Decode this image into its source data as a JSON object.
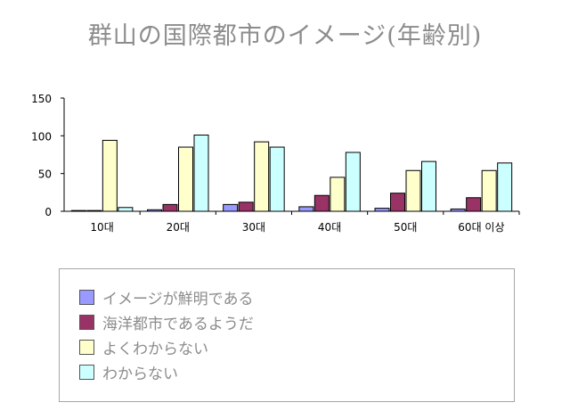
{
  "chart_data": {
    "type": "bar",
    "title": "群山の国際都市のイメージ(年齢別)",
    "categories": [
      "10대",
      "20대",
      "30대",
      "40대",
      "50대",
      "60대 이상"
    ],
    "series": [
      {
        "name": "イメージが鮮明である",
        "color": "#9999ff",
        "values": [
          1,
          2,
          9,
          6,
          4,
          3
        ]
      },
      {
        "name": "海洋都市であるようだ",
        "color": "#993366",
        "values": [
          1,
          9,
          12,
          21,
          24,
          18
        ]
      },
      {
        "name": "よくわからない",
        "color": "#ffffcc",
        "values": [
          94,
          85,
          92,
          45,
          54,
          54
        ]
      },
      {
        "name": "わからない",
        "color": "#ccffff",
        "values": [
          5,
          101,
          85,
          78,
          66,
          64
        ]
      }
    ],
    "yticks": [
      0,
      50,
      100,
      150
    ],
    "ylim": [
      0,
      150
    ],
    "xlabel": "",
    "ylabel": "",
    "legend_position": "bottom"
  }
}
